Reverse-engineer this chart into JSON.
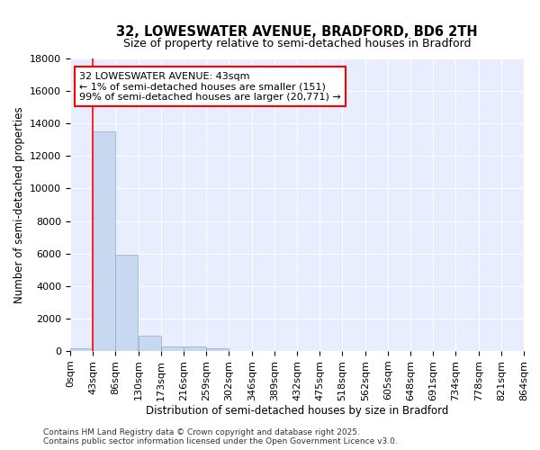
{
  "title": "32, LOWESWATER AVENUE, BRADFORD, BD6 2TH",
  "subtitle": "Size of property relative to semi-detached houses in Bradford",
  "xlabel": "Distribution of semi-detached houses by size in Bradford",
  "ylabel": "Number of semi-detached properties",
  "bin_edges": [
    0,
    43,
    86,
    130,
    173,
    216,
    259,
    302,
    346,
    389,
    432,
    475,
    518,
    562,
    605,
    648,
    691,
    734,
    778,
    821,
    864
  ],
  "bar_heights": [
    151,
    13500,
    5900,
    950,
    300,
    300,
    150,
    0,
    0,
    0,
    0,
    0,
    0,
    0,
    0,
    0,
    0,
    0,
    0,
    0
  ],
  "bar_color": "#c8d8f0",
  "bar_edge_color": "#8aaed4",
  "red_line_x": 43,
  "ylim": [
    0,
    18000
  ],
  "yticks": [
    0,
    2000,
    4000,
    6000,
    8000,
    10000,
    12000,
    14000,
    16000,
    18000
  ],
  "annotation_text": "32 LOWESWATER AVENUE: 43sqm\n← 1% of semi-detached houses are smaller (151)\n99% of semi-detached houses are larger (20,771) →",
  "background_color": "#ffffff",
  "plot_bg_color": "#e8eeff",
  "grid_color": "#ffffff",
  "footer_text": "Contains HM Land Registry data © Crown copyright and database right 2025.\nContains public sector information licensed under the Open Government Licence v3.0.",
  "title_fontsize": 10.5,
  "subtitle_fontsize": 9,
  "axis_label_fontsize": 8.5,
  "tick_fontsize": 8
}
